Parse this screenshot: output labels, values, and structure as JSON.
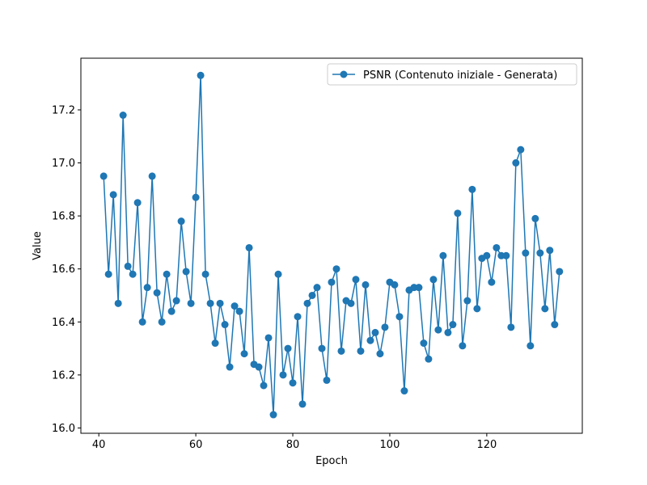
{
  "chart_data": {
    "type": "line",
    "title": "",
    "xlabel": "Epoch",
    "ylabel": "Value",
    "xlim": [
      36.3,
      139.7
    ],
    "ylim": [
      15.98,
      17.395
    ],
    "xticks": [
      40,
      60,
      80,
      100,
      120
    ],
    "yticks": [
      16.0,
      16.2,
      16.4,
      16.6,
      16.8,
      17.0,
      17.2
    ],
    "grid": false,
    "legend_position": "top-right",
    "series": [
      {
        "name": "PSNR (Contenuto iniziale - Generata)",
        "color": "#1f77b4",
        "marker": "circle",
        "x": [
          41,
          42,
          43,
          44,
          45,
          46,
          47,
          48,
          49,
          50,
          51,
          52,
          53,
          54,
          55,
          56,
          57,
          58,
          59,
          60,
          61,
          62,
          63,
          64,
          65,
          66,
          67,
          68,
          69,
          70,
          71,
          72,
          73,
          74,
          75,
          76,
          77,
          78,
          79,
          80,
          81,
          82,
          83,
          84,
          85,
          86,
          87,
          88,
          89,
          90,
          91,
          92,
          93,
          94,
          95,
          96,
          97,
          98,
          99,
          100,
          101,
          102,
          103,
          104,
          105,
          106,
          107,
          108,
          109,
          110,
          111,
          112,
          113,
          114,
          115,
          116,
          117,
          118,
          119,
          120,
          121,
          122,
          123,
          124,
          125,
          126,
          127,
          128,
          129,
          130,
          131,
          132,
          133,
          134,
          135
        ],
        "y": [
          16.95,
          16.58,
          16.88,
          16.47,
          17.18,
          16.61,
          16.58,
          16.85,
          16.4,
          16.53,
          16.95,
          16.51,
          16.4,
          16.58,
          16.44,
          16.48,
          16.78,
          16.59,
          16.47,
          16.87,
          17.33,
          16.58,
          16.47,
          16.32,
          16.47,
          16.39,
          16.23,
          16.46,
          16.44,
          16.28,
          16.68,
          16.24,
          16.23,
          16.16,
          16.34,
          16.05,
          16.58,
          16.2,
          16.3,
          16.17,
          16.42,
          16.09,
          16.47,
          16.5,
          16.53,
          16.3,
          16.18,
          16.55,
          16.6,
          16.29,
          16.48,
          16.47,
          16.56,
          16.29,
          16.54,
          16.33,
          16.36,
          16.28,
          16.38,
          16.55,
          16.54,
          16.42,
          16.14,
          16.52,
          16.53,
          16.53,
          16.32,
          16.26,
          16.56,
          16.37,
          16.65,
          16.36,
          16.39,
          16.81,
          16.31,
          16.48,
          16.9,
          16.45,
          16.64,
          16.65,
          16.55,
          16.68,
          16.65,
          16.65,
          16.38,
          17.0,
          17.05,
          16.66,
          16.31,
          16.79,
          16.66,
          16.45,
          16.67,
          16.39,
          16.59
        ]
      }
    ]
  }
}
